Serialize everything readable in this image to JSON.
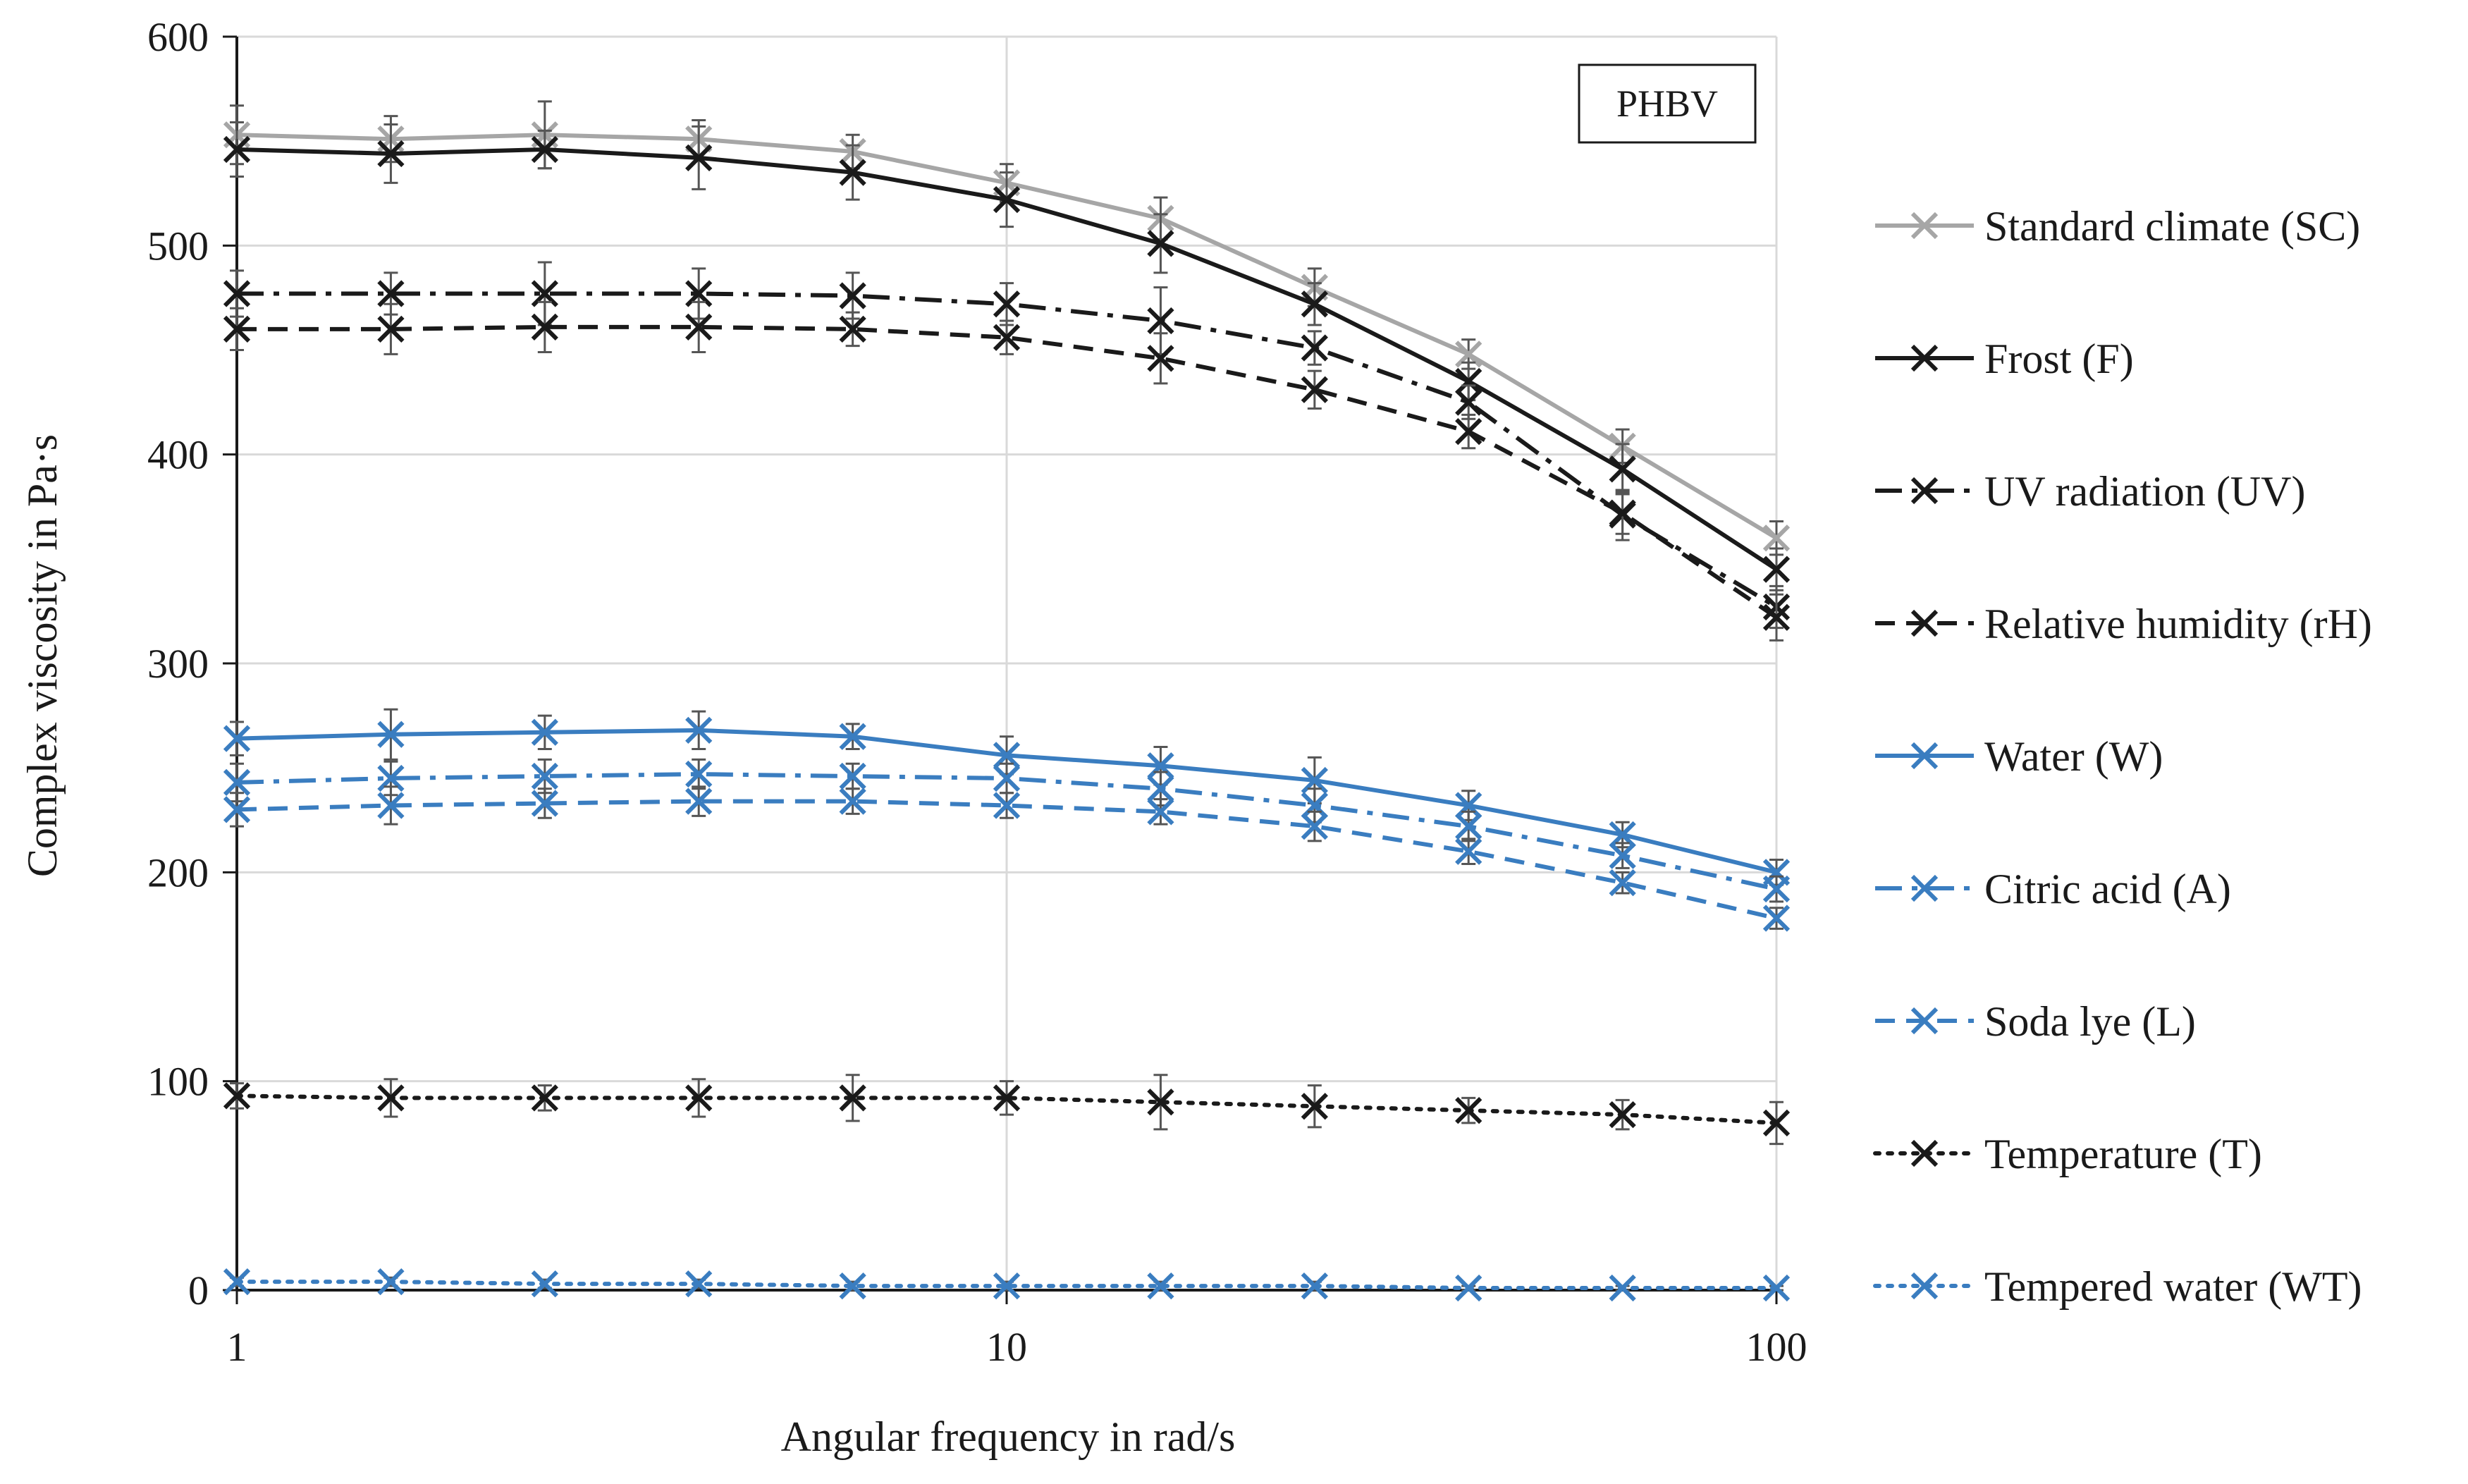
{
  "chart_data": {
    "type": "line",
    "title": "",
    "annotation": "PHBV",
    "xlabel": "Angular frequency  in rad/s",
    "ylabel": "Complex viscosity  in Pa·s",
    "xscale": "log",
    "xlim": [
      1,
      100
    ],
    "ylim": [
      0,
      600
    ],
    "x_ticks": [
      1,
      10,
      100
    ],
    "x_tick_labels": [
      "1",
      "10",
      "100"
    ],
    "y_ticks": [
      0,
      100,
      200,
      300,
      400,
      500,
      600
    ],
    "y_tick_labels": [
      "0",
      "100",
      "200",
      "300",
      "400",
      "500",
      "600"
    ],
    "grid": true,
    "legend_position": "right",
    "x": [
      1,
      1.585,
      2.512,
      3.981,
      6.31,
      10,
      15.85,
      25.12,
      39.81,
      63.1,
      100
    ],
    "series": [
      {
        "name": "Standard climate (SC)",
        "color": "#a6a6a6",
        "dash": "solid",
        "values": [
          553,
          551,
          553,
          551,
          545,
          530,
          513,
          480,
          448,
          404,
          360
        ],
        "errors": [
          14,
          11,
          16,
          9,
          8,
          9,
          10,
          9,
          7,
          8,
          8
        ]
      },
      {
        "name": "Frost (F)",
        "color": "#1a1a1a",
        "dash": "solid",
        "values": [
          546,
          544,
          546,
          542,
          535,
          522,
          501,
          472,
          435,
          393,
          345
        ],
        "errors": [
          13,
          14,
          9,
          15,
          13,
          13,
          14,
          10,
          9,
          12,
          10
        ]
      },
      {
        "name": "UV radiation (UV)",
        "color": "#1a1a1a",
        "dash": "dashdot",
        "values": [
          477,
          477,
          477,
          477,
          476,
          472,
          464,
          451,
          425,
          371,
          327
        ],
        "errors": [
          11,
          10,
          15,
          12,
          11,
          10,
          16,
          8,
          8,
          12,
          10
        ]
      },
      {
        "name": "Relative humidity (rH)",
        "color": "#1a1a1a",
        "dash": "dashed",
        "values": [
          460,
          460,
          461,
          461,
          460,
          456,
          446,
          431,
          411,
          372,
          322
        ],
        "errors": [
          10,
          12,
          12,
          12,
          8,
          8,
          12,
          9,
          8,
          10,
          11
        ]
      },
      {
        "name": "Water (W)",
        "color": "#3a7dc0",
        "dash": "solid",
        "values": [
          264,
          266,
          267,
          268,
          265,
          256,
          251,
          244,
          232,
          218,
          200
        ],
        "errors": [
          8,
          12,
          8,
          9,
          6,
          9,
          9,
          11,
          7,
          6,
          6
        ]
      },
      {
        "name": "Citric acid (A)",
        "color": "#3a7dc0",
        "dash": "dashdot",
        "values": [
          243,
          245,
          246,
          247,
          246,
          245,
          240,
          232,
          222,
          208,
          192
        ],
        "errors": [
          9,
          8,
          8,
          7,
          6,
          7,
          8,
          8,
          7,
          6,
          6
        ]
      },
      {
        "name": "Soda lye (L)",
        "color": "#3a7dc0",
        "dash": "dashed",
        "values": [
          230,
          232,
          233,
          234,
          234,
          232,
          229,
          222,
          210,
          195,
          178
        ],
        "errors": [
          8,
          9,
          7,
          7,
          6,
          6,
          6,
          7,
          6,
          5,
          5
        ]
      },
      {
        "name": "Temperature (T)",
        "color": "#1a1a1a",
        "dash": "dotted",
        "values": [
          93,
          92,
          92,
          92,
          92,
          92,
          90,
          88,
          86,
          84,
          80
        ],
        "errors": [
          6,
          9,
          6,
          9,
          11,
          8,
          13,
          10,
          6,
          7,
          10
        ]
      },
      {
        "name": "Tempered water (WT)",
        "color": "#3a7dc0",
        "dash": "dotted",
        "values": [
          4,
          4,
          3,
          3,
          2,
          2,
          2,
          2,
          1,
          1,
          1
        ],
        "errors": [
          2,
          2,
          2,
          2,
          2,
          2,
          2,
          2,
          1,
          1,
          1
        ]
      }
    ]
  }
}
